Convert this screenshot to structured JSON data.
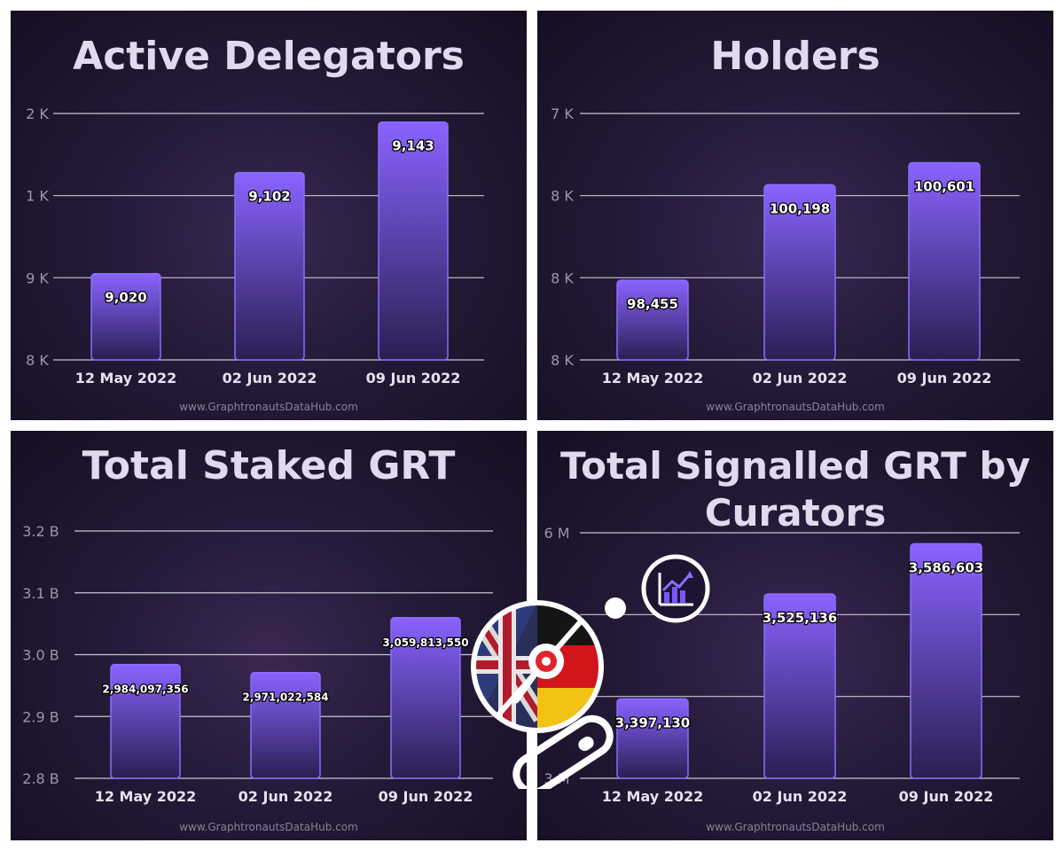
{
  "chart_data": [
    {
      "type": "bar",
      "title": "Active Delegators",
      "categories": [
        "12 May 2022",
        "02 Jun 2022",
        "09 Jun 2022"
      ],
      "values": [
        9020,
        9102,
        9143
      ],
      "value_labels": [
        "9,020",
        "9,102",
        "9,143"
      ],
      "y_ticks": [
        "2 K",
        "1 K",
        "9 K",
        "8 K"
      ],
      "ylim": [
        8950,
        9150
      ],
      "grid": true,
      "xlabel": "",
      "ylabel": ""
    },
    {
      "type": "bar",
      "title": "Holders",
      "categories": [
        "12 May 2022",
        "02 Jun 2022",
        "09 Jun 2022"
      ],
      "values": [
        98455,
        100198,
        100601
      ],
      "value_labels": [
        "98,455",
        "100,198",
        "100,601"
      ],
      "y_ticks": [
        "7 K",
        "8 K",
        "8 K",
        "8 K"
      ],
      "ylim": [
        97000,
        101500
      ],
      "grid": true,
      "xlabel": "",
      "ylabel": ""
    },
    {
      "type": "bar",
      "title": "Total Staked GRT",
      "categories": [
        "12 May 2022",
        "02 Jun 2022",
        "09 Jun 2022"
      ],
      "values": [
        2984097356,
        2971022584,
        3059813550
      ],
      "value_labels": [
        "2,984,097,356",
        "2,971,022,584",
        "3,059,813,550"
      ],
      "y_ticks": [
        "3.2 B",
        "3.1 B",
        "3.0 B",
        "2.9 B",
        "2.8 B"
      ],
      "ylim": [
        2800000000,
        3200000000
      ],
      "grid": true,
      "xlabel": "",
      "ylabel": ""
    },
    {
      "type": "bar",
      "title": "Total Signalled GRT by Curators",
      "categories": [
        "12 May 2022",
        "02 Jun 2022",
        "09 Jun 2022"
      ],
      "values": [
        3397130,
        3525136,
        3586603
      ],
      "value_labels": [
        "3,397,130",
        "3,525,136",
        "3,586,603"
      ],
      "y_ticks": [
        "6 M",
        "",
        "",
        "3 M"
      ],
      "ylim": [
        3300000,
        3600000
      ],
      "grid": true,
      "xlabel": "",
      "ylabel": ""
    }
  ],
  "watermark": "www.GraphtronautsDataHub.com",
  "colors": {
    "bar_top": "#8a63ff",
    "bar_bottom": "#2a1f52",
    "bar_edge": "#8a6dff",
    "grid": "#c9c3d4",
    "tick_text": "#9e96ab",
    "category_text": "#e6e0ee",
    "title_text": "#e2d9ee"
  },
  "icons": [
    "uk-germany-flag-badge-icon",
    "chart-growth-icon",
    "pill-icon",
    "dot-icon"
  ]
}
